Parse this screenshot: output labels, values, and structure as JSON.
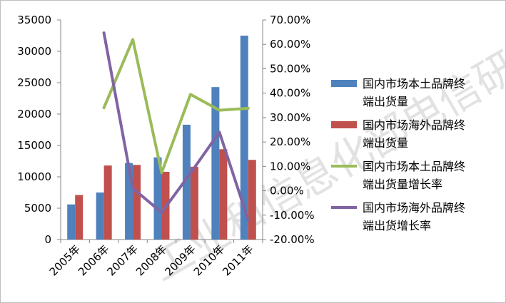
{
  "chart_data": {
    "type": "bar",
    "title": "",
    "xlabel": "",
    "ylabel": "",
    "categories": [
      "2005年",
      "2006年",
      "2007年",
      "2008年",
      "2009年",
      "2010年",
      "2011年"
    ],
    "series": [
      {
        "name": "国内市场本土品牌终端出货量",
        "legend_lines": [
          "国内市场本土品牌终",
          "端出货量"
        ],
        "type": "bar",
        "axis": "left",
        "color": "#4f81bd",
        "values": [
          5600,
          7500,
          12200,
          13100,
          18300,
          24300,
          32500
        ]
      },
      {
        "name": "国内市场海外品牌终端出货量",
        "legend_lines": [
          "国内市场海外品牌终",
          "端出货量"
        ],
        "type": "bar",
        "axis": "left",
        "color": "#c0504d",
        "values": [
          7100,
          11800,
          11900,
          10800,
          11600,
          14400,
          12700
        ]
      },
      {
        "name": "国内市场本土品牌终端出货量增长率",
        "legend_lines": [
          "国内市场本土品牌终",
          "端出货量增长率"
        ],
        "type": "line",
        "axis": "right",
        "color": "#9bbb59",
        "x": [
          "2006年",
          "2007年",
          "2008年",
          "2009年",
          "2010年",
          "2011年"
        ],
        "values": [
          34.0,
          62.0,
          7.4,
          39.5,
          33.0,
          33.8
        ]
      },
      {
        "name": "国内市场海外品牌终端出货增长率",
        "legend_lines": [
          "国内市场海外品牌终",
          "端出货增长率"
        ],
        "type": "line",
        "axis": "right",
        "color": "#8064a2",
        "x": [
          "2006年",
          "2007年",
          "2008年",
          "2009年",
          "2010年",
          "2011年"
        ],
        "values": [
          64.7,
          1.0,
          -8.9,
          7.2,
          24.0,
          -12.0
        ]
      }
    ],
    "left_axis": {
      "range": [
        0,
        35000
      ],
      "ticks": [
        0,
        5000,
        10000,
        15000,
        20000,
        25000,
        30000,
        35000
      ],
      "tick_labels": [
        "0",
        "5000",
        "10000",
        "15000",
        "20000",
        "25000",
        "30000",
        "35000"
      ]
    },
    "right_axis": {
      "range": [
        -20,
        70
      ],
      "ticks": [
        -20,
        -10,
        0,
        10,
        20,
        30,
        40,
        50,
        60,
        70
      ],
      "tick_labels": [
        "-20.00%",
        "-10.00%",
        "0.00%",
        "10.00%",
        "20.00%",
        "30.00%",
        "40.00%",
        "50.00%",
        "60.00%",
        "70.00%"
      ]
    },
    "grid": false,
    "legend_position": "right"
  },
  "watermark": {
    "text": "工业和信息化部电信研究院",
    "color": "#d9d9d9"
  }
}
